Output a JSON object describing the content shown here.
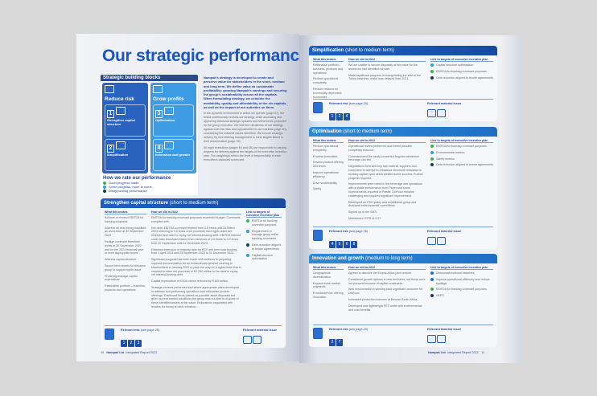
{
  "left_page": {
    "title": "Our strategic performance",
    "blocks": {
      "header": "Strategic building blocks",
      "reduce_risk": "Reduce risk",
      "grow_profits": "Grow profits",
      "items": [
        {
          "num": "1",
          "label": "Strengthen capital structure"
        },
        {
          "num": "2",
          "label": "Simplification"
        },
        {
          "num": "3",
          "label": "Optimisation"
        },
        {
          "num": "4",
          "label": "Innovation and growth"
        }
      ]
    },
    "rating": {
      "title": "How we rate our performance",
      "items": [
        {
          "label": "Good progress made",
          "color": "#3bb54a"
        },
        {
          "label": "Some progress, more to come",
          "color": "#2a9fe0"
        },
        {
          "label": "Disappointing performance",
          "color": "#123a5a"
        }
      ]
    },
    "intro_bold": "Nampak's strategy is developed to create and preserve value for stakeholders in the short, medium and long term. We define value as sustainable profitability: growing Nampak's earnings and securing the group's sustainability across all the capitals. When formulating strategy, we consider the availability, quality and affordability of the six capitals, as well as the impact of our activities on them.",
    "intro_p1": "In the dynamic environment in which we operate (page 07), the board continuously reviews our strategy, while assessing and approving divisional strategic updates and refinements proposed by the group executive. We test the robustness of our strategy against both the risks and opportunities in our markets (page 20), considering the material issues identified. We ensure strategic delivery by incentivising management to meet targets linked to their remuneration (page 76).",
    "intro_p2": "All eight executives (pages 64 and 65) are responsible to varying degrees for delivery against the targets of the executive incentive plan. The weightings reflect the level of responsibility in each executive's balanced scorecard.",
    "section": {
      "title": "Strengthen capital structure",
      "term": "(short to medium term)",
      "col1": "What this means",
      "col2": "How we did in 2022",
      "col3": "Link to targets of executive incentive plan",
      "means": [
        "Achieve or exceed EBITDA for banking purposes",
        "Address all debt being classified as short-term at 30 September 2022",
        "Realign covenant threshold levels at 30 September 2022 and for the 2023 financial year to more appropriate levels",
        "Address capital structure",
        "Secure term sheets to refinance group to support rights issue",
        "Prudently manage capital expenditure",
        "Rationalise portfolio – business, products and operations"
      ],
      "did": [
        "EBITDA for banking covenant purposes exceeded budget. Covenants complied with.",
        "Net debt: EBITDA covenant relaxed from 3.5 times until 31 March 2023 reducing to 3.0 times once proceeds from rights issue are received and used to repay net interest-bearing debt. EBITDA interest cover ratio threshold relaxed from minimum of 4.0 times to 3.0 times from 30 September until 31 December 2023.",
        "Obtained extension of maturity date for RCF and term loan funding from 1 April 2023 and 25 September 2023 to 31 December 2023.",
        "Significant progress has been made with advisors in preparing required documentation for an extraordinary general meeting of shareholders in January 2023 to pave the way for a rights issue that is required to raise net proceeds of R1 350 million to be used to repay net interest-bearing debt.",
        "Capital expenditure of R208 million reduced by R105 million.",
        "Strategic reviews performed and where appropriate plans developed to address non-performing operations and rationalise product offerings. Continued focus placed on possible asset disposals but given current market conditions the group was not able to dispose of these identified assets at fair value. Relocations negotiated with lenders for timing of debt reduction."
      ],
      "links": [
        {
          "label": "EBITDA for banking covenant purposes",
          "color": "#3bb54a"
        },
        {
          "label": "Requirement to manage group within banking covenants",
          "color": "#2a9fe0"
        },
        {
          "label": "Debt reduction aligned to lender agreements",
          "color": "#123a5a"
        },
        {
          "label": "Capital structure optimisation",
          "color": "#2a9fe0"
        }
      ],
      "risk_label": "Relevant risk",
      "risk_page": "(see page 25)",
      "risks": [
        "1",
        "2",
        "3"
      ],
      "material_label": "Relevant material issue"
    },
    "footer": {
      "page": "10",
      "company": "Nampak Ltd",
      "report": "Integrated Report 2022"
    }
  },
  "right_page": {
    "sections": [
      {
        "title": "Simplification",
        "term": "(short to medium term)",
        "col1": "What this means",
        "col2": "How we did in 2022",
        "col3": "Link to targets of executive incentive plan",
        "means": [
          "Rationalise portfolio – business, products and operations",
          "Reduce operational complexity",
          "Reduce reliance on commodity-dependent economies"
        ],
        "did": [
          "We are unable to secure disposals at fair value for the assets we had identified for sale.",
          "Made significant progress in renegotiating the sale of the Tubes business, which was delayed from 2021."
        ],
        "links": [
          {
            "label": "Capital structure optimisation",
            "color": "#2a9fe0"
          },
          {
            "label": "EBITDA for banking covenant purposes",
            "color": "#3bb54a"
          },
          {
            "label": "Debt reduction aligned to lender agreements",
            "color": "#123a5a"
          }
        ],
        "risk_label": "Relevant risk",
        "risk_page": "(see page 25)",
        "risks": [
          "1",
          "2",
          "4"
        ],
        "material_label": "Relevant material issue"
      },
      {
        "title": "Optimisation",
        "term": "(short to medium term)",
        "col1": "What this means",
        "col2": "How we did in 2022",
        "col3": "Link to targets of executive incentive plan",
        "means": [
          "Reduce operational complexity",
          "Process innovation",
          "Review product offering and terms",
          "Improve operational efficiency",
          "Drive sustainability",
          "Safety"
        ],
        "did": [
          "Operational review performed and where possible complexity reduced.",
          "Commissioned the newly converted Angolan aluminium beverage can line.",
          "Negotiations held with key raw material suppliers and customers to attempt to rebalance structural imbalance in working capital cycle which yielded some success. Further progress required.",
          "Improvements were noted in the beverage can operations with a stable performance from Paper and some improvements reported in Plastic. DivFood remains challenging and requires significant improvement.",
          "Developed an ESG policy and established group and divisional environmental committees.",
          "Signed up to the SBTi.",
          "Maintained LTIFR of 0.27."
        ],
        "links": [
          {
            "label": "EBITDA for banking covenant purposes",
            "color": "#3bb54a"
          },
          {
            "label": "Environmental metrics",
            "color": "#2a9fe0"
          },
          {
            "label": "Safety metrics",
            "color": "#3bb54a"
          },
          {
            "label": "Debt reduction aligned to lender agreements",
            "color": "#123a5a"
          }
        ],
        "risk_label": "Relevant risk",
        "risk_page": "(see page 25)",
        "risks": [
          "4",
          "5",
          "6",
          "8"
        ],
        "material_label": "Relevant material issue"
      },
      {
        "title": "Innovation and growth",
        "term": "(medium to long term)",
        "col1": "What this means",
        "col2": "How we did in 2022",
        "col3": "Link to targets of executive incentive plan",
        "means": [
          "Geographical diversification",
          "Expand niche market segments",
          "Product/service offering innovation"
        ],
        "did": [
          "Agreed to dissolve the Elopak Africa joint venture.",
          "Considered growth options in new territories, but these were not pursued because of capital constraints.",
          "Was unsuccessful in winning back significant customer for DivFood.",
          "Increased production volumes at Bevcan South Africa.",
          "Developed new lightweight PET bottle with environmental and cost benefits."
        ],
        "links": [
          {
            "label": "Divisional/functional initiatives",
            "color": "#1d6fc4"
          },
          {
            "label": "Improve operational efficiency and reduce spoilage",
            "color": "#1d6fc4"
          },
          {
            "label": "EBITDA for banking covenant purposes",
            "color": "#3bb54a"
          },
          {
            "label": "HEPS",
            "color": "#123a5a"
          }
        ],
        "risk_label": "Relevant risk",
        "risk_page": "(see page 25)",
        "risks": [
          "2",
          "7"
        ],
        "material_label": "Relevant material issue"
      }
    ],
    "footer": {
      "company": "Nampak Ltd",
      "report": "Integrated Report 2022",
      "page": "11"
    }
  }
}
